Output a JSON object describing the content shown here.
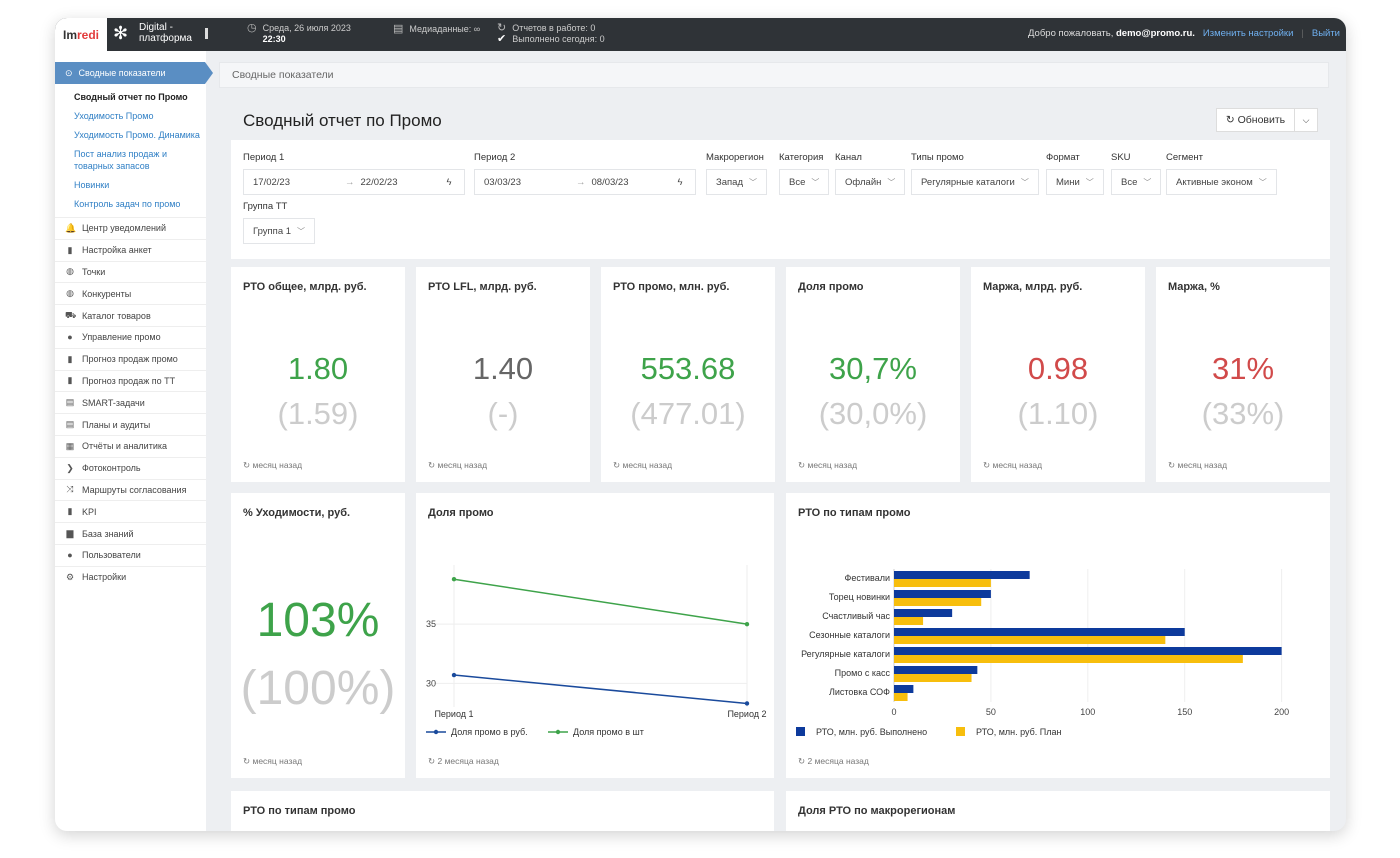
{
  "topbar": {
    "logo_left": "Im",
    "logo_right": "redi",
    "product_line1": "Digital -",
    "product_line2": "платформа",
    "date": "Среда, 26 июля 2023",
    "time": "22:30",
    "media": "Медиаданные: ∞",
    "reports_in_work": "Отчетов в работе: 0",
    "done_today": "Выполнено сегодня: 0",
    "welcome": "Добро пожаловать,",
    "user": "demo@promo.ru.",
    "settings_link": "Изменить настройки",
    "logout": "Выйти"
  },
  "sidebar": {
    "active": "Сводные показатели",
    "sub": [
      "Сводный отчет по Промо",
      "Уходимость Промо",
      "Уходимость Промо. Динамика",
      "Пост анализ продаж и",
      "товарных запасов",
      "Новинки",
      "Контроль задач по промо"
    ],
    "items": [
      {
        "icon": "bell-icon",
        "label": "Центр уведомлений"
      },
      {
        "icon": "file-icon",
        "label": "Настройка анкет"
      },
      {
        "icon": "globe-icon",
        "label": "Точки"
      },
      {
        "icon": "globe-icon",
        "label": "Конкуренты"
      },
      {
        "icon": "cart-icon",
        "label": "Каталог товаров"
      },
      {
        "icon": "dot-icon",
        "label": "Управление промо"
      },
      {
        "icon": "bar-chart-icon",
        "label": "Прогноз продаж промо"
      },
      {
        "icon": "bar-chart-icon",
        "label": "Прогноз продаж по ТТ"
      },
      {
        "icon": "list-icon",
        "label": "SMART-задачи"
      },
      {
        "icon": "list-icon",
        "label": "Планы и аудиты"
      },
      {
        "icon": "table-icon",
        "label": "Отчёты и аналитика"
      },
      {
        "icon": "chevron-right-icon",
        "label": "Фотоконтроль"
      },
      {
        "icon": "shuffle-icon",
        "label": "Маршруты согласования"
      },
      {
        "icon": "bar-chart-icon",
        "label": "KPI"
      },
      {
        "icon": "book-icon",
        "label": "База знаний"
      },
      {
        "icon": "user-icon",
        "label": "Пользователи"
      },
      {
        "icon": "gear-icon",
        "label": "Настройки"
      }
    ]
  },
  "breadcrumb": "Сводные показатели",
  "page_title": "Сводный отчет по Промо",
  "refresh_label": "Обновить",
  "filters": {
    "period1_label": "Период 1",
    "period1_from": "17/02/23",
    "period1_to": "22/02/23",
    "period2_label": "Период 2",
    "period2_from": "03/03/23",
    "period2_to": "08/03/23",
    "arrow": "→",
    "macro_label": "Макрорегион",
    "macro": "Запад",
    "cat_label": "Категория",
    "cat": "Все",
    "chan_label": "Канал",
    "chan": "Офлайн",
    "type_label": "Типы промо",
    "type": "Регулярные каталоги",
    "fmt_label": "Формат",
    "fmt": "Мини",
    "sku_label": "SKU",
    "sku": "Все",
    "seg_label": "Сегмент",
    "seg": "Активные эконом",
    "group_label": "Группа ТТ",
    "group": "Группа 1"
  },
  "kpis": [
    {
      "title": "РТО общее, млрд. руб.",
      "value": "1.80",
      "prev": "(1.59)",
      "color": "green",
      "ago": "месяц назад"
    },
    {
      "title": "РТО LFL, млрд. руб.",
      "value": "1.40",
      "prev": "(-)",
      "color": "gray",
      "ago": "месяц назад"
    },
    {
      "title": "РТО промо, млн. руб.",
      "value": "553.68",
      "prev": "(477.01)",
      "color": "green",
      "ago": "месяц назад"
    },
    {
      "title": "Доля промо",
      "value": "30,7%",
      "prev": "(30,0%)",
      "color": "green",
      "ago": "месяц назад"
    },
    {
      "title": "Маржа, млрд. руб.",
      "value": "0.98",
      "prev": "(1.10)",
      "color": "red",
      "ago": "месяц назад"
    },
    {
      "title": "Маржа, %",
      "value": "31%",
      "prev": "(33%)",
      "color": "red",
      "ago": "месяц назад"
    }
  ],
  "churn": {
    "title": "% Уходимости, руб.",
    "value": "103%",
    "prev": "(100%)",
    "ago": "месяц назад"
  },
  "line_card": {
    "title": "Доля промо",
    "ago": "2 месяца назад"
  },
  "bar_card": {
    "title": "РТО по типам промо",
    "ago": "2 месяца назад"
  },
  "bottom": {
    "left_title": "РТО по типам промо",
    "right_title": "Доля РТО по макрорегионам"
  },
  "chart_data": [
    {
      "type": "line",
      "title": "Доля промо",
      "categories": [
        "Период 1",
        "Период 2"
      ],
      "yticks": [
        30,
        35
      ],
      "ylim": [
        28,
        40
      ],
      "series": [
        {
          "name": "Доля промо в руб.",
          "color": "#1a4a9c",
          "values": [
            30.7,
            28.3
          ]
        },
        {
          "name": "Доля промо в шт",
          "color": "#3ea34a",
          "values": [
            38.8,
            35.0
          ]
        }
      ]
    },
    {
      "type": "bar",
      "title": "РТО по типам промо",
      "orientation": "horizontal",
      "categories": [
        "Фестивали",
        "Торец новинки",
        "Счастливый час",
        "Сезонные каталоги",
        "Регулярные каталоги",
        "Промо с касс",
        "Листовка СОФ"
      ],
      "xticks": [
        0,
        50,
        100,
        150,
        200
      ],
      "xlim": [
        0,
        210
      ],
      "series": [
        {
          "name": "РТО, млн. руб. Выполнено",
          "color": "#0d3a9c",
          "values": [
            70,
            50,
            30,
            150,
            200,
            43,
            10
          ]
        },
        {
          "name": "РТО, млн. руб. План",
          "color": "#f7be0d",
          "values": [
            50,
            45,
            15,
            140,
            180,
            40,
            7
          ]
        }
      ]
    }
  ]
}
